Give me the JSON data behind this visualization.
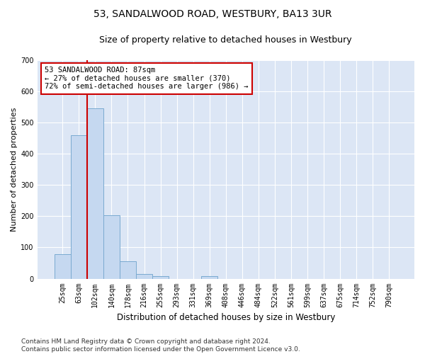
{
  "title": "53, SANDALWOOD ROAD, WESTBURY, BA13 3UR",
  "subtitle": "Size of property relative to detached houses in Westbury",
  "xlabel": "Distribution of detached houses by size in Westbury",
  "ylabel": "Number of detached properties",
  "categories": [
    "25sqm",
    "63sqm",
    "102sqm",
    "140sqm",
    "178sqm",
    "216sqm",
    "255sqm",
    "293sqm",
    "331sqm",
    "369sqm",
    "408sqm",
    "446sqm",
    "484sqm",
    "522sqm",
    "561sqm",
    "599sqm",
    "637sqm",
    "675sqm",
    "714sqm",
    "752sqm",
    "790sqm"
  ],
  "bar_heights": [
    78,
    460,
    545,
    203,
    55,
    14,
    8,
    0,
    0,
    8,
    0,
    0,
    0,
    0,
    0,
    0,
    0,
    0,
    0,
    0,
    0
  ],
  "bar_color": "#c5d8f0",
  "bar_edge_color": "#7aaad0",
  "vline_color": "#cc0000",
  "annotation_text": "53 SANDALWOOD ROAD: 87sqm\n← 27% of detached houses are smaller (370)\n72% of semi-detached houses are larger (986) →",
  "annotation_box_color": "#ffffff",
  "annotation_box_edge_color": "#cc0000",
  "ylim": [
    0,
    700
  ],
  "yticks": [
    0,
    100,
    200,
    300,
    400,
    500,
    600,
    700
  ],
  "footer": "Contains HM Land Registry data © Crown copyright and database right 2024.\nContains public sector information licensed under the Open Government Licence v3.0.",
  "fig_bg_color": "#ffffff",
  "plot_bg_color": "#dce6f5",
  "title_fontsize": 10,
  "subtitle_fontsize": 9,
  "xlabel_fontsize": 8.5,
  "ylabel_fontsize": 8,
  "tick_fontsize": 7,
  "footer_fontsize": 6.5,
  "annotation_fontsize": 7.5
}
